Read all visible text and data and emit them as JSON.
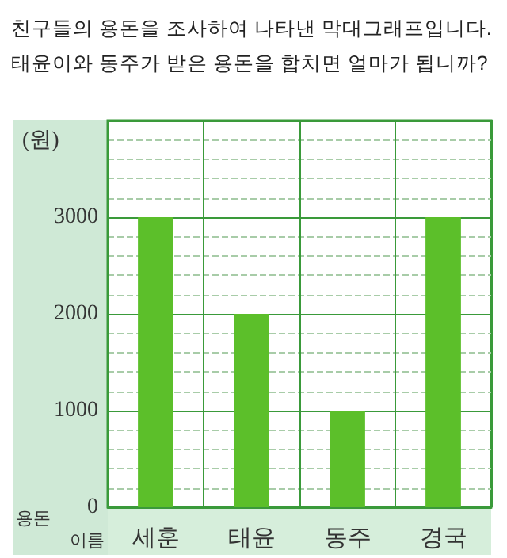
{
  "chart_data": {
    "type": "bar",
    "title": "친구들의 용돈을 조사하여 나타낸 막대그래프입니다.\n태윤이와 동주가 받은 용돈을 합치면 얼마가 됩니까?",
    "ylabel": "(원)",
    "xlabel": "이름",
    "annotations": [
      "용돈"
    ],
    "categories": [
      "세훈",
      "태윤",
      "동주",
      "경국"
    ],
    "values": [
      3000,
      2000,
      1000,
      3000
    ],
    "color": "#5cbf2a",
    "ylim": [
      0,
      4000
    ],
    "yticks": [
      0,
      1000,
      2000,
      3000,
      {
        "value": 4000,
        "label": null
      }
    ],
    "grid": true
  }
}
